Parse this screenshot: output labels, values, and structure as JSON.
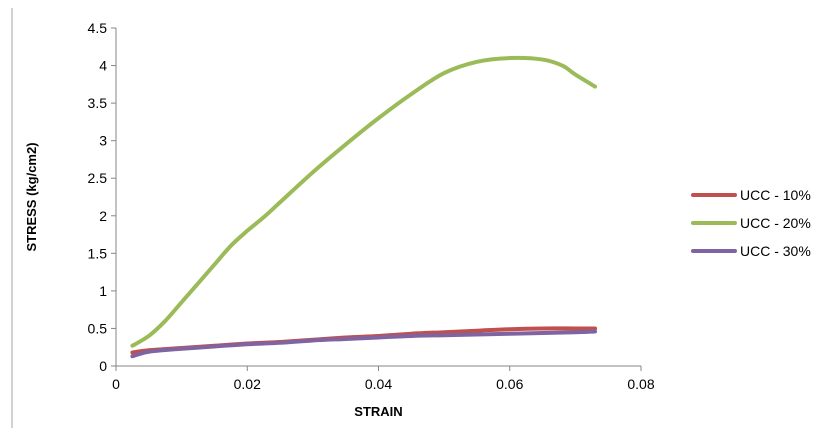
{
  "chart_data": {
    "type": "line",
    "title": "",
    "xlabel": "STRAIN",
    "ylabel": "STRESS (kg/cm2)",
    "xlim": [
      0,
      0.08
    ],
    "ylim": [
      0,
      4.5
    ],
    "x_ticks": [
      0,
      0.02,
      0.04,
      0.06,
      0.08
    ],
    "x_tick_labels": [
      "0",
      "0.02",
      "0.04",
      "0.06",
      "0.08"
    ],
    "y_ticks": [
      0,
      0.5,
      1,
      1.5,
      2,
      2.5,
      3,
      3.5,
      4,
      4.5
    ],
    "y_tick_labels": [
      "0",
      "0.5",
      "1",
      "1.5",
      "2",
      "2.5",
      "3",
      "3.5",
      "4",
      "4.5"
    ],
    "grid": false,
    "legend_position": "right",
    "series": [
      {
        "name": "UCC - 10%",
        "color": "#c0504d",
        "x": [
          0.0025,
          0.005,
          0.01,
          0.015,
          0.02,
          0.025,
          0.03,
          0.035,
          0.04,
          0.045,
          0.05,
          0.055,
          0.06,
          0.065,
          0.07,
          0.073
        ],
        "y": [
          0.18,
          0.21,
          0.24,
          0.27,
          0.3,
          0.32,
          0.35,
          0.38,
          0.4,
          0.43,
          0.45,
          0.47,
          0.49,
          0.5,
          0.5,
          0.5
        ]
      },
      {
        "name": "UCC - 20%",
        "color": "#9bbb59",
        "x": [
          0.0025,
          0.005,
          0.0075,
          0.01,
          0.0125,
          0.015,
          0.0175,
          0.02,
          0.0225,
          0.025,
          0.03,
          0.035,
          0.04,
          0.045,
          0.05,
          0.055,
          0.06,
          0.065,
          0.068,
          0.07,
          0.073
        ],
        "y": [
          0.27,
          0.4,
          0.6,
          0.85,
          1.1,
          1.35,
          1.6,
          1.8,
          1.98,
          2.18,
          2.58,
          2.95,
          3.3,
          3.62,
          3.9,
          4.05,
          4.1,
          4.08,
          4.0,
          3.88,
          3.72
        ]
      },
      {
        "name": "UCC - 30%",
        "color": "#8064a2",
        "x": [
          0.0025,
          0.005,
          0.01,
          0.015,
          0.02,
          0.025,
          0.03,
          0.035,
          0.04,
          0.045,
          0.05,
          0.055,
          0.06,
          0.065,
          0.07,
          0.073
        ],
        "y": [
          0.13,
          0.19,
          0.23,
          0.26,
          0.29,
          0.31,
          0.34,
          0.36,
          0.38,
          0.4,
          0.41,
          0.42,
          0.43,
          0.44,
          0.45,
          0.46
        ]
      }
    ]
  }
}
